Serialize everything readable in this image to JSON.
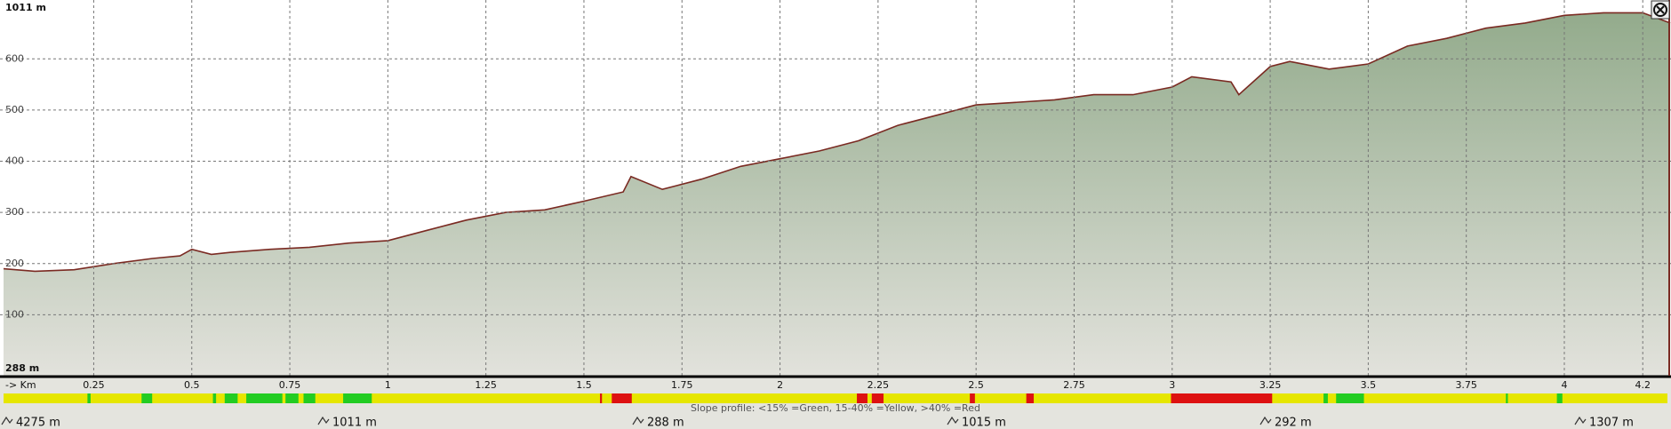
{
  "chart_data": {
    "type": "area",
    "max_label": "1011 m",
    "min_label": "288 m",
    "x_label": "-> Km",
    "x": [
      0.02,
      0.1,
      0.2,
      0.3,
      0.4,
      0.47,
      0.5,
      0.55,
      0.6,
      0.7,
      0.8,
      0.9,
      1.0,
      1.1,
      1.2,
      1.3,
      1.4,
      1.5,
      1.6,
      1.62,
      1.7,
      1.8,
      1.9,
      2.0,
      2.1,
      2.2,
      2.3,
      2.4,
      2.5,
      2.6,
      2.7,
      2.8,
      2.9,
      3.0,
      3.05,
      3.15,
      3.17,
      3.25,
      3.3,
      3.4,
      3.5,
      3.6,
      3.7,
      3.8,
      3.9,
      4.0,
      4.1,
      4.2,
      4.27
    ],
    "values": [
      190,
      185,
      188,
      200,
      210,
      215,
      228,
      218,
      222,
      228,
      232,
      240,
      245,
      265,
      285,
      300,
      305,
      322,
      340,
      370,
      345,
      365,
      390,
      405,
      420,
      440,
      470,
      490,
      510,
      515,
      520,
      530,
      530,
      545,
      565,
      555,
      530,
      585,
      595,
      580,
      590,
      625,
      640,
      660,
      670,
      685,
      690,
      690,
      670
    ],
    "line_color": "#7a2a22",
    "fill_top": "#93ab8c",
    "fill_bottom": "#e2e2dc",
    "xlim": [
      0.011,
      4.272
    ],
    "ylim": [
      -19,
      715
    ],
    "xticks": [
      0.25,
      0.5,
      0.75,
      1,
      1.25,
      1.5,
      1.75,
      2,
      2.25,
      2.5,
      2.75,
      3,
      3.25,
      3.5,
      3.75,
      4,
      4.2
    ],
    "yticks": [
      100,
      200,
      300,
      400,
      500,
      600
    ],
    "grid": true,
    "slope_profile": {
      "note": "Slope profile: <15% =Green, 15-40% =Yellow, >40% =Red",
      "background": "#e6e600",
      "segments": [
        {
          "start": 0.234,
          "end": 0.242,
          "color": "#22cc22"
        },
        {
          "start": 0.372,
          "end": 0.399,
          "color": "#22cc22"
        },
        {
          "start": 0.554,
          "end": 0.562,
          "color": "#22cc22"
        },
        {
          "start": 0.584,
          "end": 0.617,
          "color": "#22cc22"
        },
        {
          "start": 0.639,
          "end": 0.731,
          "color": "#22cc22"
        },
        {
          "start": 0.739,
          "end": 0.772,
          "color": "#22cc22"
        },
        {
          "start": 0.785,
          "end": 0.815,
          "color": "#22cc22"
        },
        {
          "start": 0.886,
          "end": 0.959,
          "color": "#22cc22"
        },
        {
          "start": 3.386,
          "end": 3.397,
          "color": "#22cc22"
        },
        {
          "start": 3.418,
          "end": 3.489,
          "color": "#22cc22"
        },
        {
          "start": 3.851,
          "end": 3.856,
          "color": "#22cc22"
        },
        {
          "start": 3.981,
          "end": 3.995,
          "color": "#22cc22"
        },
        {
          "start": 1.541,
          "end": 1.546,
          "color": "#dd1111"
        },
        {
          "start": 1.571,
          "end": 1.622,
          "color": "#dd1111"
        },
        {
          "start": 2.196,
          "end": 2.223,
          "color": "#dd1111"
        },
        {
          "start": 2.234,
          "end": 2.264,
          "color": "#dd1111"
        },
        {
          "start": 2.484,
          "end": 2.497,
          "color": "#dd1111"
        },
        {
          "start": 2.628,
          "end": 2.647,
          "color": "#dd1111"
        },
        {
          "start": 2.997,
          "end": 3.255,
          "color": "#dd1111"
        }
      ]
    },
    "stats": [
      "4275 m",
      "1011 m",
      "288 m",
      "1015 m",
      "292 m",
      "1307 m"
    ]
  }
}
